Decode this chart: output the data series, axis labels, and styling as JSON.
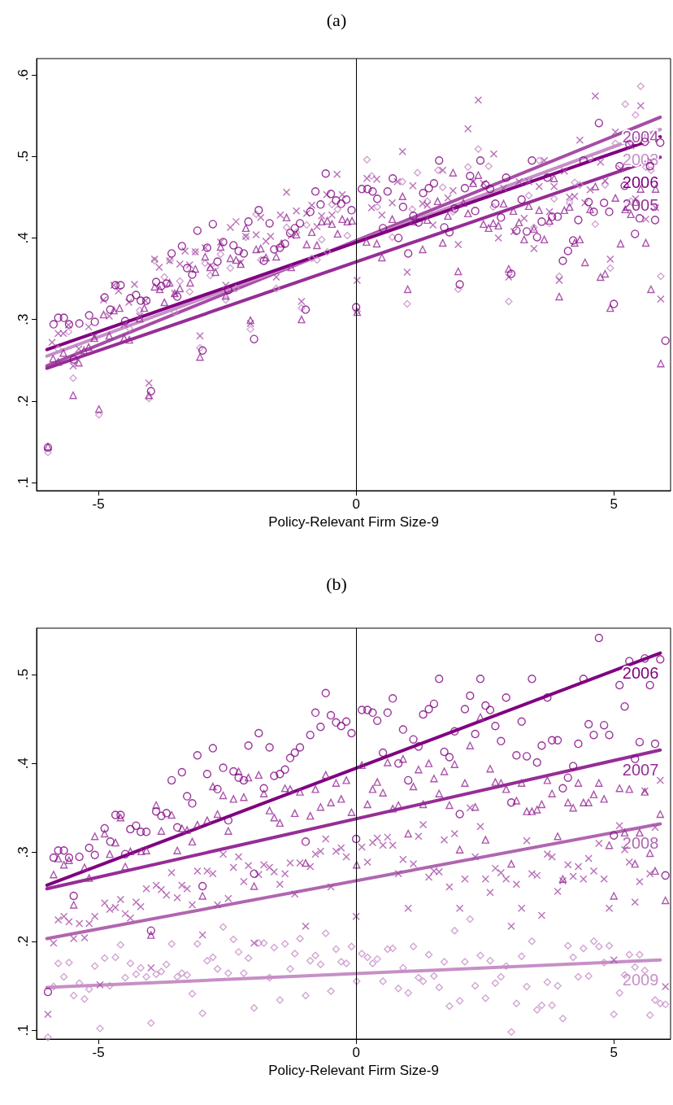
{
  "chart_data": [
    {
      "type": "scatter",
      "title": "(a)",
      "xlabel": "Policy-Relevant Firm Size-9",
      "xlim": [
        -6.2,
        6.1
      ],
      "xticks": [
        -5,
        0,
        5
      ],
      "ylim": [
        0.09,
        0.62
      ],
      "yticks": [
        {
          "value": 0.1,
          "label": ".1"
        },
        {
          "value": 0.2,
          "label": ".2"
        },
        {
          "value": 0.3,
          "label": ".3"
        },
        {
          "value": 0.4,
          "label": ".4"
        },
        {
          "value": 0.5,
          "label": ".5"
        },
        {
          "value": 0.6,
          "label": ".6"
        }
      ],
      "ref_lines": [
        {
          "axis": "x",
          "value": 0,
          "color": "#000000"
        }
      ],
      "series": [
        {
          "type": "scatter",
          "marker": "diamond",
          "color": "#c78fc7",
          "x": [
            -5.98,
            -5.78,
            -5.58,
            -5.49,
            -4.99,
            -4.4,
            -4.2,
            -4.02,
            -3.91,
            -3.72,
            -3.61,
            -3.52,
            -3.42,
            -3.23,
            -3.12,
            -3.03,
            -2.93,
            -2.83,
            -2.73,
            -2.63,
            -2.53,
            -2.44,
            -2.33,
            -2.14,
            -2.05,
            -1.94,
            -1.85,
            -1.55,
            -1.35,
            -1.16,
            -1.06,
            -0.96,
            -0.86,
            -0.76,
            -0.67,
            -0.56,
            -0.47,
            -0.36,
            -0.17,
            0.02,
            0.21,
            0.3,
            0.41,
            0.7,
            0.9,
            0.99,
            1.09,
            1.19,
            1.38,
            1.59,
            1.68,
            1.88,
            1.98,
            2.17,
            2.37,
            2.57,
            2.66,
            2.96,
            3.35,
            3.45,
            3.55,
            3.75,
            3.84,
            3.94,
            4.14,
            4.24,
            4.34,
            4.54,
            4.64,
            4.83,
            4.93,
            5.03,
            5.22,
            5.33,
            5.42,
            5.52,
            5.62,
            5.72,
            5.91
          ],
          "values": [
            0.137,
            0.264,
            0.285,
            0.228,
            0.183,
            0.289,
            0.311,
            0.203,
            0.372,
            0.352,
            0.373,
            0.309,
            0.347,
            0.334,
            0.383,
            0.265,
            0.369,
            0.354,
            0.364,
            0.38,
            0.324,
            0.363,
            0.338,
            0.401,
            0.288,
            0.429,
            0.373,
            0.338,
            0.413,
            0.407,
            0.314,
            0.416,
            0.375,
            0.373,
            0.398,
            0.383,
            0.441,
            0.435,
            0.403,
            0.31,
            0.496,
            0.476,
            0.438,
            0.401,
            0.469,
            0.319,
            0.435,
            0.48,
            0.445,
            0.483,
            0.462,
            0.432,
            0.337,
            0.487,
            0.509,
            0.488,
            0.438,
            0.322,
            0.452,
            0.413,
            0.495,
            0.418,
            0.448,
            0.353,
            0.443,
            0.468,
            0.465,
            0.498,
            0.417,
            0.465,
            0.363,
            0.516,
            0.564,
            0.445,
            0.551,
            0.586,
            0.487,
            0.483,
            0.353
          ]
        },
        {
          "type": "scatter",
          "marker": "cross",
          "color": "#a64ca6",
          "x": [
            -5.9,
            -5.78,
            -5.68,
            -5.58,
            -5.49,
            -5.38,
            -5.19,
            -5.08,
            -4.9,
            -4.79,
            -4.7,
            -4.61,
            -4.5,
            -4.41,
            -4.3,
            -4.2,
            -4.09,
            -4.02,
            -3.91,
            -3.82,
            -3.62,
            -3.52,
            -3.42,
            -3.32,
            -3.23,
            -3.12,
            -3.03,
            -2.93,
            -2.83,
            -2.63,
            -2.53,
            -2.44,
            -2.33,
            -2.24,
            -2.14,
            -2.05,
            -1.94,
            -1.85,
            -1.75,
            -1.66,
            -1.55,
            -1.47,
            -1.35,
            -1.26,
            -1.16,
            -1.06,
            -0.96,
            -0.86,
            -0.76,
            -0.67,
            -0.57,
            -0.47,
            -0.37,
            -0.27,
            0.02,
            0.21,
            0.3,
            0.4,
            0.5,
            0.7,
            0.8,
            0.9,
            0.99,
            1.1,
            1.29,
            1.38,
            1.49,
            1.68,
            1.78,
            1.88,
            1.98,
            2.17,
            2.27,
            2.37,
            2.47,
            2.67,
            2.76,
            2.86,
            2.96,
            3.06,
            3.16,
            3.26,
            3.35,
            3.45,
            3.55,
            3.65,
            3.75,
            3.84,
            3.94,
            4.04,
            4.14,
            4.24,
            4.34,
            4.44,
            4.54,
            4.64,
            4.74,
            4.83,
            4.93,
            5.03,
            5.13,
            5.33,
            5.42,
            5.52,
            5.62,
            5.72,
            5.81,
            5.91
          ],
          "values": [
            0.272,
            0.283,
            0.283,
            0.293,
            0.243,
            0.264,
            0.291,
            0.279,
            0.324,
            0.304,
            0.342,
            0.335,
            0.294,
            0.321,
            0.343,
            0.304,
            0.323,
            0.222,
            0.374,
            0.364,
            0.372,
            0.332,
            0.368,
            0.384,
            0.367,
            0.383,
            0.28,
            0.388,
            0.366,
            0.395,
            0.342,
            0.413,
            0.42,
            0.37,
            0.402,
            0.295,
            0.404,
            0.425,
            0.396,
            0.402,
            0.352,
            0.428,
            0.456,
            0.403,
            0.433,
            0.322,
            0.43,
            0.44,
            0.414,
            0.427,
            0.453,
            0.428,
            0.478,
            0.453,
            0.348,
            0.473,
            0.437,
            0.472,
            0.428,
            0.443,
            0.469,
            0.506,
            0.358,
            0.464,
            0.442,
            0.44,
            0.416,
            0.483,
            0.449,
            0.458,
            0.392,
            0.534,
            0.469,
            0.569,
            0.467,
            0.503,
            0.4,
            0.461,
            0.352,
            0.408,
            0.469,
            0.424,
            0.469,
            0.387,
            0.463,
            0.495,
            0.432,
            0.463,
            0.348,
            0.482,
            0.45,
            0.451,
            0.52,
            0.443,
            0.459,
            0.574,
            0.493,
            0.47,
            0.374,
            0.53,
            0.485,
            0.513,
            0.448,
            0.562,
            0.423,
            0.494,
            0.437,
            0.325
          ]
        },
        {
          "type": "scatter",
          "marker": "triangle",
          "color": "#962d96",
          "x": [
            -5.98,
            -5.88,
            -5.78,
            -5.68,
            -5.49,
            -5.38,
            -5.28,
            -5.19,
            -5.08,
            -4.99,
            -4.9,
            -4.79,
            -4.7,
            -4.59,
            -4.5,
            -4.4,
            -4.2,
            -4.11,
            -4.02,
            -3.91,
            -3.81,
            -3.72,
            -3.62,
            -3.52,
            -3.42,
            -3.22,
            -3.12,
            -3.03,
            -2.93,
            -2.83,
            -2.73,
            -2.63,
            -2.53,
            -2.44,
            -2.33,
            -2.24,
            -2.14,
            -2.05,
            -1.94,
            -1.85,
            -1.75,
            -1.55,
            -1.45,
            -1.35,
            -1.26,
            -1.16,
            -1.06,
            -0.96,
            -0.86,
            -0.76,
            -0.67,
            -0.56,
            -0.47,
            -0.36,
            -0.27,
            -0.17,
            -0.08,
            0.02,
            0.2,
            0.4,
            0.5,
            0.7,
            0.9,
            1.0,
            1.11,
            1.29,
            1.38,
            1.58,
            1.68,
            1.78,
            1.88,
            1.98,
            2.08,
            2.17,
            2.27,
            2.37,
            2.47,
            2.57,
            2.66,
            2.76,
            2.86,
            2.96,
            3.05,
            3.16,
            3.26,
            3.35,
            3.45,
            3.55,
            3.65,
            3.75,
            3.84,
            3.94,
            4.04,
            4.14,
            4.24,
            4.34,
            4.44,
            4.54,
            4.64,
            4.74,
            4.83,
            4.93,
            5.03,
            5.13,
            5.22,
            5.33,
            5.42,
            5.52,
            5.62,
            5.72,
            5.81,
            5.91
          ],
          "values": [
            0.144,
            0.252,
            0.248,
            0.259,
            0.207,
            0.247,
            0.262,
            0.266,
            0.277,
            0.19,
            0.306,
            0.28,
            0.311,
            0.314,
            0.277,
            0.275,
            0.301,
            0.314,
            0.207,
            0.34,
            0.337,
            0.321,
            0.345,
            0.332,
            0.338,
            0.345,
            0.362,
            0.254,
            0.377,
            0.364,
            0.358,
            0.389,
            0.329,
            0.375,
            0.373,
            0.368,
            0.412,
            0.299,
            0.386,
            0.387,
            0.376,
            0.377,
            0.393,
            0.425,
            0.364,
            0.404,
            0.3,
            0.392,
            0.407,
            0.391,
            0.42,
            0.421,
            0.417,
            0.405,
            0.423,
            0.42,
            0.421,
            0.309,
            0.395,
            0.393,
            0.376,
            0.423,
            0.451,
            0.337,
            0.42,
            0.386,
            0.422,
            0.445,
            0.394,
            0.427,
            0.48,
            0.359,
            0.443,
            0.43,
            0.467,
            0.477,
            0.417,
            0.412,
            0.418,
            0.415,
            0.442,
            0.362,
            0.433,
            0.419,
            0.398,
            0.439,
            0.411,
            0.434,
            0.398,
            0.421,
            0.473,
            0.328,
            0.434,
            0.438,
            0.394,
            0.398,
            0.37,
            0.435,
            0.463,
            0.352,
            0.356,
            0.314,
            0.449,
            0.393,
            0.435,
            0.429,
            0.444,
            0.46,
            0.394,
            0.337,
            0.46,
            0.246
          ]
        },
        {
          "type": "scatter",
          "marker": "circle",
          "color": "#800080",
          "x": [
            -5.98,
            -5.87,
            -5.78,
            -5.67,
            -5.57,
            -5.48,
            -5.37,
            -5.18,
            -5.07,
            -4.88,
            -4.77,
            -4.67,
            -4.57,
            -4.48,
            -4.38,
            -4.27,
            -4.18,
            -4.07,
            -3.98,
            -3.88,
            -3.78,
            -3.68,
            -3.58,
            -3.47,
            -3.38,
            -3.28,
            -3.18,
            -3.08,
            -2.98,
            -2.89,
            -2.78,
            -2.69,
            -2.58,
            -2.48,
            -2.38,
            -2.28,
            -2.18,
            -2.09,
            -1.98,
            -1.89,
            -1.79,
            -1.68,
            -1.59,
            -1.48,
            -1.38,
            -1.28,
            -1.19,
            -1.09,
            -0.98,
            -0.89,
            -0.79,
            -0.69,
            -0.59,
            -0.49,
            -0.39,
            -0.29,
            -0.19,
            -0.09,
            0.0,
            0.11,
            0.22,
            0.32,
            0.41,
            0.52,
            0.61,
            0.71,
            0.82,
            0.91,
            1.01,
            1.11,
            1.21,
            1.3,
            1.41,
            1.51,
            1.61,
            1.71,
            1.81,
            1.91,
            2.01,
            2.11,
            2.21,
            2.31,
            2.41,
            2.51,
            2.6,
            2.7,
            2.81,
            2.91,
            3.01,
            3.11,
            3.21,
            3.31,
            3.41,
            3.51,
            3.6,
            3.71,
            3.8,
            3.91,
            4.01,
            4.11,
            4.21,
            4.31,
            4.41,
            4.51,
            4.61,
            4.71,
            4.81,
            4.91,
            5.0,
            5.11,
            5.21,
            5.3,
            5.41,
            5.5,
            5.6,
            5.7,
            5.8,
            5.9,
            6.0
          ],
          "values": [
            0.143,
            0.294,
            0.302,
            0.302,
            0.294,
            0.251,
            0.295,
            0.305,
            0.297,
            0.327,
            0.312,
            0.342,
            0.342,
            0.298,
            0.326,
            0.33,
            0.323,
            0.323,
            0.212,
            0.346,
            0.341,
            0.344,
            0.381,
            0.328,
            0.39,
            0.363,
            0.355,
            0.409,
            0.262,
            0.388,
            0.417,
            0.371,
            0.395,
            0.336,
            0.391,
            0.384,
            0.381,
            0.42,
            0.276,
            0.434,
            0.372,
            0.418,
            0.386,
            0.388,
            0.393,
            0.406,
            0.412,
            0.418,
            0.312,
            0.432,
            0.457,
            0.441,
            0.479,
            0.454,
            0.446,
            0.442,
            0.447,
            0.434,
            0.315,
            0.46,
            0.46,
            0.457,
            0.448,
            0.412,
            0.457,
            0.473,
            0.4,
            0.438,
            0.381,
            0.427,
            0.419,
            0.455,
            0.461,
            0.467,
            0.495,
            0.413,
            0.407,
            0.436,
            0.343,
            0.461,
            0.476,
            0.433,
            0.495,
            0.465,
            0.46,
            0.442,
            0.425,
            0.474,
            0.356,
            0.409,
            0.447,
            0.408,
            0.495,
            0.401,
            0.42,
            0.474,
            0.426,
            0.426,
            0.372,
            0.384,
            0.397,
            0.422,
            0.495,
            0.444,
            0.432,
            0.541,
            0.443,
            0.432,
            0.319,
            0.488,
            0.464,
            0.515,
            0.405,
            0.424,
            0.518,
            0.488,
            0.422,
            0.517,
            0.274
          ]
        },
        {
          "type": "line",
          "name": "2004",
          "marker": "none",
          "color": "#a64ca6",
          "x": [
            -6,
            5.9
          ],
          "values": [
            0.243,
            0.548
          ]
        },
        {
          "type": "line",
          "name": "2003",
          "marker": "none",
          "color": "#c78fc7",
          "x": [
            -6,
            5.9
          ],
          "values": [
            0.255,
            0.533
          ]
        },
        {
          "type": "line",
          "name": "2006",
          "marker": "none",
          "color": "#800080",
          "x": [
            -6,
            5.9
          ],
          "values": [
            0.263,
            0.524
          ]
        },
        {
          "type": "line",
          "name": "2005",
          "marker": "none",
          "color": "#962d96",
          "x": [
            -6,
            5.9
          ],
          "values": [
            0.24,
            0.499
          ]
        }
      ]
    },
    {
      "type": "scatter",
      "title": "(b)",
      "xlabel": "Policy-Relevant Firm Size-9",
      "xlim": [
        -6.2,
        6.1
      ],
      "xticks": [
        -5,
        0,
        5
      ],
      "ylim": [
        0.09,
        0.552
      ],
      "yticks": [
        {
          "value": 0.1,
          "label": ".1"
        },
        {
          "value": 0.2,
          "label": ".2"
        },
        {
          "value": 0.3,
          "label": ".3"
        },
        {
          "value": 0.4,
          "label": ".4"
        },
        {
          "value": 0.5,
          "label": ".5"
        }
      ],
      "ref_lines": [
        {
          "axis": "x",
          "value": 0,
          "color": "#000000"
        }
      ],
      "series": [
        {
          "type": "scatter",
          "marker": "diamond",
          "color": "#c78fc7",
          "x": [
            -5.98,
            -5.87,
            -5.78,
            -5.67,
            -5.57,
            -5.48,
            -5.37,
            -5.27,
            -5.18,
            -5.07,
            -4.97,
            -4.88,
            -4.78,
            -4.67,
            -4.57,
            -4.48,
            -4.38,
            -4.27,
            -4.18,
            -4.07,
            -3.98,
            -3.88,
            -3.78,
            -3.68,
            -3.58,
            -3.47,
            -3.38,
            -3.28,
            -3.18,
            -3.08,
            -2.98,
            -2.89,
            -2.78,
            -2.69,
            -2.58,
            -2.48,
            -2.38,
            -2.28,
            -2.18,
            -2.09,
            -1.98,
            -1.89,
            -1.79,
            -1.68,
            -1.59,
            -1.48,
            -1.38,
            -1.28,
            -1.19,
            -1.09,
            -0.98,
            -0.89,
            -0.79,
            -0.69,
            -0.59,
            -0.49,
            -0.39,
            -0.29,
            -0.19,
            -0.09,
            0.01,
            0.11,
            0.22,
            0.32,
            0.41,
            0.52,
            0.61,
            0.71,
            0.82,
            0.91,
            1.01,
            1.11,
            1.21,
            1.3,
            1.41,
            1.51,
            1.61,
            1.71,
            1.81,
            1.91,
            2.01,
            2.11,
            2.21,
            2.31,
            2.41,
            2.51,
            2.6,
            2.7,
            2.81,
            2.91,
            3.01,
            3.11,
            3.21,
            3.31,
            3.41,
            3.51,
            3.6,
            3.71,
            3.8,
            3.91,
            4.01,
            4.11,
            4.21,
            4.31,
            4.41,
            4.51,
            4.61,
            4.71,
            4.81,
            4.91,
            5.0,
            5.11,
            5.21,
            5.3,
            5.41,
            5.5,
            5.6,
            5.7,
            5.8,
            5.9,
            6.0
          ],
          "values": [
            0.092,
            0.149,
            0.175,
            0.16,
            0.176,
            0.139,
            0.153,
            0.135,
            0.146,
            0.172,
            0.102,
            0.181,
            0.15,
            0.182,
            0.196,
            0.159,
            0.175,
            0.163,
            0.17,
            0.16,
            0.108,
            0.163,
            0.166,
            0.174,
            0.197,
            0.16,
            0.164,
            0.162,
            0.141,
            0.197,
            0.119,
            0.178,
            0.182,
            0.169,
            0.216,
            0.164,
            0.202,
            0.188,
            0.164,
            0.181,
            0.125,
            0.198,
            0.198,
            0.159,
            0.193,
            0.134,
            0.197,
            0.169,
            0.186,
            0.203,
            0.139,
            0.178,
            0.184,
            0.174,
            0.209,
            0.144,
            0.191,
            0.177,
            0.175,
            0.194,
            0.155,
            0.186,
            0.182,
            0.175,
            0.18,
            0.155,
            0.191,
            0.192,
            0.147,
            0.17,
            0.142,
            0.194,
            0.159,
            0.155,
            0.185,
            0.161,
            0.148,
            0.177,
            0.127,
            0.212,
            0.133,
            0.177,
            0.225,
            0.15,
            0.184,
            0.136,
            0.178,
            0.153,
            0.16,
            0.172,
            0.098,
            0.13,
            0.183,
            0.149,
            0.2,
            0.123,
            0.128,
            0.154,
            0.128,
            0.15,
            0.113,
            0.195,
            0.182,
            0.16,
            0.192,
            0.161,
            0.2,
            0.194,
            0.176,
            0.195,
            0.118,
            0.142,
            0.162,
            0.185,
            0.171,
            0.185,
            0.167,
            0.117,
            0.134,
            0.13,
            0.129
          ]
        },
        {
          "type": "scatter",
          "marker": "cross",
          "color": "#a64ca6",
          "x": [
            -5.98,
            -5.87,
            -5.78,
            -5.67,
            -5.57,
            -5.48,
            -5.37,
            -5.27,
            -5.18,
            -5.07,
            -4.97,
            -4.88,
            -4.78,
            -4.67,
            -4.57,
            -4.48,
            -4.38,
            -4.27,
            -4.18,
            -4.07,
            -3.98,
            -3.88,
            -3.78,
            -3.68,
            -3.58,
            -3.47,
            -3.38,
            -3.28,
            -3.18,
            -3.08,
            -2.98,
            -2.89,
            -2.78,
            -2.69,
            -2.58,
            -2.48,
            -2.38,
            -2.28,
            -2.18,
            -2.09,
            -1.98,
            -1.89,
            -1.79,
            -1.68,
            -1.59,
            -1.48,
            -1.38,
            -1.28,
            -1.19,
            -1.09,
            -0.98,
            -0.89,
            -0.79,
            -0.69,
            -0.59,
            -0.49,
            -0.39,
            -0.29,
            -0.19,
            0.0,
            0.11,
            0.22,
            0.32,
            0.41,
            0.52,
            0.61,
            0.71,
            0.82,
            0.91,
            1.01,
            1.11,
            1.21,
            1.3,
            1.41,
            1.51,
            1.61,
            1.71,
            1.81,
            1.91,
            2.01,
            2.11,
            2.21,
            2.31,
            2.41,
            2.51,
            2.6,
            2.7,
            2.81,
            2.91,
            3.01,
            3.11,
            3.21,
            3.31,
            3.41,
            3.51,
            3.6,
            3.71,
            3.8,
            3.91,
            4.01,
            4.11,
            4.21,
            4.31,
            4.41,
            4.51,
            4.61,
            4.71,
            4.81,
            4.91,
            5.0,
            5.11,
            5.21,
            5.3,
            5.41,
            5.5,
            5.6,
            5.7,
            5.8,
            5.9,
            6.0
          ],
          "values": [
            0.118,
            0.198,
            0.224,
            0.228,
            0.222,
            0.203,
            0.22,
            0.204,
            0.22,
            0.228,
            0.151,
            0.243,
            0.236,
            0.238,
            0.247,
            0.231,
            0.226,
            0.244,
            0.239,
            0.259,
            0.17,
            0.263,
            0.258,
            0.252,
            0.277,
            0.249,
            0.263,
            0.259,
            0.241,
            0.279,
            0.207,
            0.279,
            0.276,
            0.241,
            0.298,
            0.248,
            0.283,
            0.295,
            0.267,
            0.285,
            0.198,
            0.275,
            0.286,
            0.283,
            0.278,
            0.264,
            0.276,
            0.288,
            0.253,
            0.288,
            0.217,
            0.284,
            0.298,
            0.301,
            0.315,
            0.261,
            0.301,
            0.305,
            0.295,
            0.228,
            0.306,
            0.289,
            0.311,
            0.316,
            0.308,
            0.317,
            0.308,
            0.276,
            0.292,
            0.237,
            0.287,
            0.318,
            0.331,
            0.272,
            0.279,
            0.278,
            0.314,
            0.261,
            0.321,
            0.237,
            0.27,
            0.35,
            0.295,
            0.329,
            0.27,
            0.255,
            0.282,
            0.277,
            0.27,
            0.217,
            0.264,
            0.237,
            0.313,
            0.276,
            0.274,
            0.229,
            0.298,
            0.295,
            0.256,
            0.268,
            0.286,
            0.273,
            0.284,
            0.27,
            0.293,
            0.279,
            0.31,
            0.27,
            0.237,
            0.179,
            0.33,
            0.303,
            0.289,
            0.244,
            0.267,
            0.369,
            0.276,
            0.328,
            0.381,
            0.149
          ]
        },
        {
          "type": "scatter",
          "marker": "triangle",
          "color": "#962d96",
          "x": [
            -5.87,
            -5.78,
            -5.67,
            -5.57,
            -5.48,
            -5.27,
            -5.18,
            -5.07,
            -4.88,
            -4.78,
            -4.67,
            -4.57,
            -4.48,
            -4.38,
            -4.17,
            -4.07,
            -3.98,
            -3.88,
            -3.78,
            -3.58,
            -3.47,
            -3.38,
            -3.28,
            -3.18,
            -3.08,
            -2.98,
            -2.89,
            -2.78,
            -2.69,
            -2.58,
            -2.48,
            -2.38,
            -2.28,
            -2.18,
            -2.09,
            -1.98,
            -1.89,
            -1.79,
            -1.68,
            -1.59,
            -1.48,
            -1.38,
            -1.28,
            -1.19,
            -1.09,
            -0.98,
            -0.89,
            -0.79,
            -0.69,
            -0.59,
            -0.49,
            -0.39,
            -0.29,
            -0.19,
            -0.09,
            0.01,
            0.11,
            0.22,
            0.32,
            0.41,
            0.52,
            0.61,
            0.71,
            0.82,
            0.91,
            1.01,
            1.11,
            1.21,
            1.3,
            1.41,
            1.51,
            1.61,
            1.71,
            1.81,
            1.91,
            2.01,
            2.11,
            2.21,
            2.31,
            2.41,
            2.51,
            2.6,
            2.7,
            2.81,
            2.91,
            3.01,
            3.11,
            3.21,
            3.31,
            3.41,
            3.51,
            3.6,
            3.71,
            3.8,
            3.91,
            4.01,
            4.11,
            4.21,
            4.31,
            4.41,
            4.51,
            4.61,
            4.71,
            4.81,
            4.91,
            5.0,
            5.11,
            5.21,
            5.3,
            5.41,
            5.5,
            5.6,
            5.7,
            5.8,
            5.9,
            6.0
          ],
          "values": [
            0.275,
            0.293,
            0.286,
            0.291,
            0.241,
            0.283,
            0.271,
            0.318,
            0.321,
            0.298,
            0.311,
            0.339,
            0.284,
            0.301,
            0.301,
            0.302,
            0.207,
            0.353,
            0.324,
            0.342,
            0.302,
            0.327,
            0.325,
            0.312,
            0.331,
            0.251,
            0.336,
            0.374,
            0.343,
            0.364,
            0.324,
            0.36,
            0.391,
            0.362,
            0.384,
            0.262,
            0.387,
            0.366,
            0.347,
            0.339,
            0.333,
            0.372,
            0.371,
            0.344,
            0.368,
            0.288,
            0.341,
            0.371,
            0.351,
            0.387,
            0.356,
            0.378,
            0.36,
            0.381,
            0.345,
            0.286,
            0.398,
            0.354,
            0.371,
            0.379,
            0.367,
            0.401,
            0.349,
            0.353,
            0.405,
            0.321,
            0.374,
            0.393,
            0.354,
            0.4,
            0.383,
            0.366,
            0.391,
            0.353,
            0.399,
            0.303,
            0.378,
            0.42,
            0.351,
            0.452,
            0.314,
            0.394,
            0.379,
            0.378,
            0.371,
            0.287,
            0.358,
            0.378,
            0.346,
            0.346,
            0.348,
            0.354,
            0.381,
            0.366,
            0.318,
            0.27,
            0.356,
            0.35,
            0.378,
            0.356,
            0.356,
            0.365,
            0.378,
            0.36,
            0.308,
            0.251,
            0.372,
            0.322,
            0.371,
            0.287,
            0.322,
            0.368,
            0.299,
            0.279,
            0.343,
            0.246
          ]
        },
        {
          "type": "scatter",
          "marker": "circle",
          "color": "#800080",
          "x": [
            -5.98,
            -5.87,
            -5.78,
            -5.67,
            -5.57,
            -5.48,
            -5.37,
            -5.18,
            -5.07,
            -4.88,
            -4.77,
            -4.67,
            -4.57,
            -4.48,
            -4.38,
            -4.27,
            -4.18,
            -4.07,
            -3.98,
            -3.88,
            -3.78,
            -3.68,
            -3.58,
            -3.47,
            -3.38,
            -3.28,
            -3.18,
            -3.08,
            -2.98,
            -2.89,
            -2.78,
            -2.69,
            -2.58,
            -2.48,
            -2.38,
            -2.28,
            -2.18,
            -2.09,
            -1.98,
            -1.89,
            -1.79,
            -1.68,
            -1.59,
            -1.48,
            -1.38,
            -1.28,
            -1.19,
            -1.09,
            -0.98,
            -0.89,
            -0.79,
            -0.69,
            -0.59,
            -0.49,
            -0.39,
            -0.29,
            -0.19,
            -0.09,
            0.0,
            0.11,
            0.22,
            0.32,
            0.41,
            0.52,
            0.61,
            0.71,
            0.82,
            0.91,
            1.01,
            1.11,
            1.21,
            1.3,
            1.41,
            1.51,
            1.61,
            1.71,
            1.81,
            1.91,
            2.01,
            2.11,
            2.21,
            2.31,
            2.41,
            2.51,
            2.6,
            2.7,
            2.81,
            2.91,
            3.01,
            3.11,
            3.21,
            3.31,
            3.41,
            3.51,
            3.6,
            3.71,
            3.8,
            3.91,
            4.01,
            4.11,
            4.21,
            4.31,
            4.41,
            4.51,
            4.61,
            4.71,
            4.81,
            4.91,
            5.0,
            5.11,
            5.21,
            5.3,
            5.41,
            5.5,
            5.6,
            5.7,
            5.8,
            5.9,
            6.0
          ],
          "values": [
            0.143,
            0.294,
            0.302,
            0.302,
            0.294,
            0.251,
            0.295,
            0.305,
            0.297,
            0.327,
            0.312,
            0.342,
            0.342,
            0.298,
            0.326,
            0.33,
            0.323,
            0.323,
            0.212,
            0.346,
            0.341,
            0.344,
            0.381,
            0.328,
            0.39,
            0.363,
            0.355,
            0.409,
            0.262,
            0.388,
            0.417,
            0.371,
            0.395,
            0.336,
            0.391,
            0.384,
            0.381,
            0.42,
            0.276,
            0.434,
            0.372,
            0.418,
            0.386,
            0.388,
            0.393,
            0.406,
            0.412,
            0.418,
            0.312,
            0.432,
            0.457,
            0.441,
            0.479,
            0.454,
            0.446,
            0.442,
            0.447,
            0.434,
            0.315,
            0.46,
            0.46,
            0.457,
            0.448,
            0.412,
            0.457,
            0.473,
            0.4,
            0.438,
            0.381,
            0.427,
            0.419,
            0.455,
            0.461,
            0.467,
            0.495,
            0.413,
            0.407,
            0.436,
            0.343,
            0.461,
            0.476,
            0.433,
            0.495,
            0.465,
            0.46,
            0.442,
            0.425,
            0.474,
            0.356,
            0.409,
            0.447,
            0.408,
            0.495,
            0.401,
            0.42,
            0.474,
            0.426,
            0.426,
            0.372,
            0.384,
            0.397,
            0.422,
            0.495,
            0.444,
            0.432,
            0.541,
            0.443,
            0.432,
            0.319,
            0.488,
            0.464,
            0.515,
            0.405,
            0.424,
            0.518,
            0.488,
            0.422,
            0.517,
            0.274
          ]
        },
        {
          "type": "line",
          "name": "2006",
          "marker": "none",
          "color": "#800080",
          "x": [
            -6,
            5.9
          ],
          "values": [
            0.263,
            0.524
          ]
        },
        {
          "type": "line",
          "name": "2007",
          "marker": "none",
          "color": "#962d96",
          "x": [
            -6,
            5.9
          ],
          "values": [
            0.259,
            0.415
          ]
        },
        {
          "type": "line",
          "name": "2008",
          "marker": "none",
          "color": "#b066b0",
          "x": [
            -6,
            5.9
          ],
          "values": [
            0.203,
            0.332
          ]
        },
        {
          "type": "line",
          "name": "2009",
          "marker": "none",
          "color": "#c78fc7",
          "x": [
            -6,
            5.9
          ],
          "values": [
            0.148,
            0.179
          ]
        }
      ]
    }
  ]
}
